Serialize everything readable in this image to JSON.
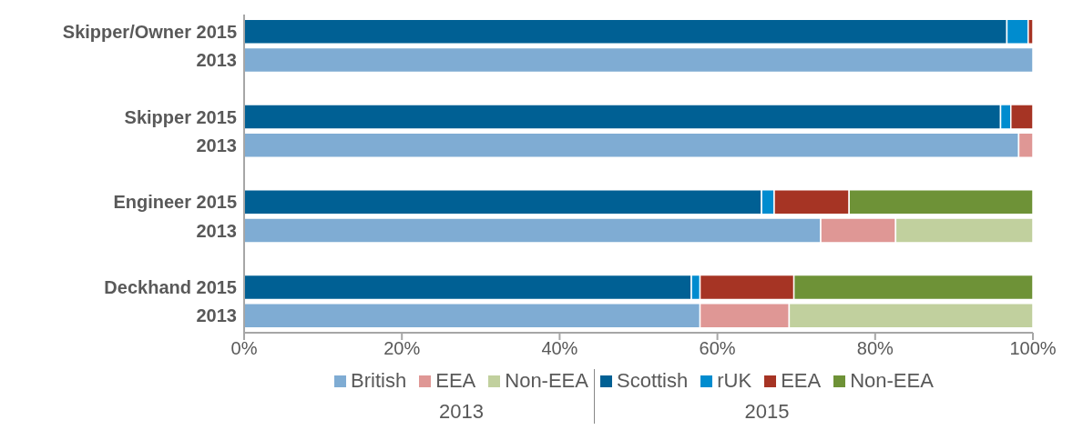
{
  "chart_data": {
    "type": "bar",
    "orientation": "horizontal",
    "stacked": true,
    "legend": "bottom",
    "grid": false,
    "categories": [
      "Skipper/Owner  2015",
      "2013",
      "Skipper  2015",
      "2013",
      "Engineer  2015",
      "2013",
      "Deckhand  2015",
      "2013"
    ],
    "xlim": [
      0,
      100
    ],
    "xticks": [
      {
        "value": 0,
        "label": "0%"
      },
      {
        "value": 20,
        "label": "20%"
      },
      {
        "value": 40,
        "label": "40%"
      },
      {
        "value": 60,
        "label": "60%"
      },
      {
        "value": 80,
        "label": "80%"
      },
      {
        "value": 100,
        "label": "100%"
      }
    ],
    "series": [
      {
        "name": "British",
        "color": "#7facd3",
        "values": [
          null,
          100,
          null,
          98.2,
          null,
          73.1,
          null,
          57.8
        ]
      },
      {
        "name": "EEA",
        "color": "#df9795",
        "values": [
          null,
          0,
          null,
          1.8,
          null,
          9.5,
          null,
          11.3
        ]
      },
      {
        "name": "Non-EEA",
        "color": "#c1d09e",
        "values": [
          null,
          0,
          null,
          0,
          null,
          17.4,
          null,
          30.9
        ]
      },
      {
        "name": "Scottish",
        "color": "#006094",
        "values": [
          96.7,
          null,
          95.9,
          null,
          65.6,
          null,
          56.7,
          null
        ]
      },
      {
        "name": "rUK",
        "color": "#008ccf",
        "values": [
          2.7,
          null,
          1.3,
          null,
          1.6,
          null,
          1.1,
          null
        ]
      },
      {
        "name": "EEA",
        "color": "#a63424",
        "values": [
          0.6,
          null,
          2.8,
          null,
          9.5,
          null,
          11.9,
          null
        ]
      },
      {
        "name": "Non-EEA",
        "color": "#6e9237",
        "values": [
          0,
          null,
          0,
          null,
          23.3,
          null,
          30.3,
          null
        ]
      }
    ],
    "annotations": [
      "2013",
      "2015"
    ]
  }
}
